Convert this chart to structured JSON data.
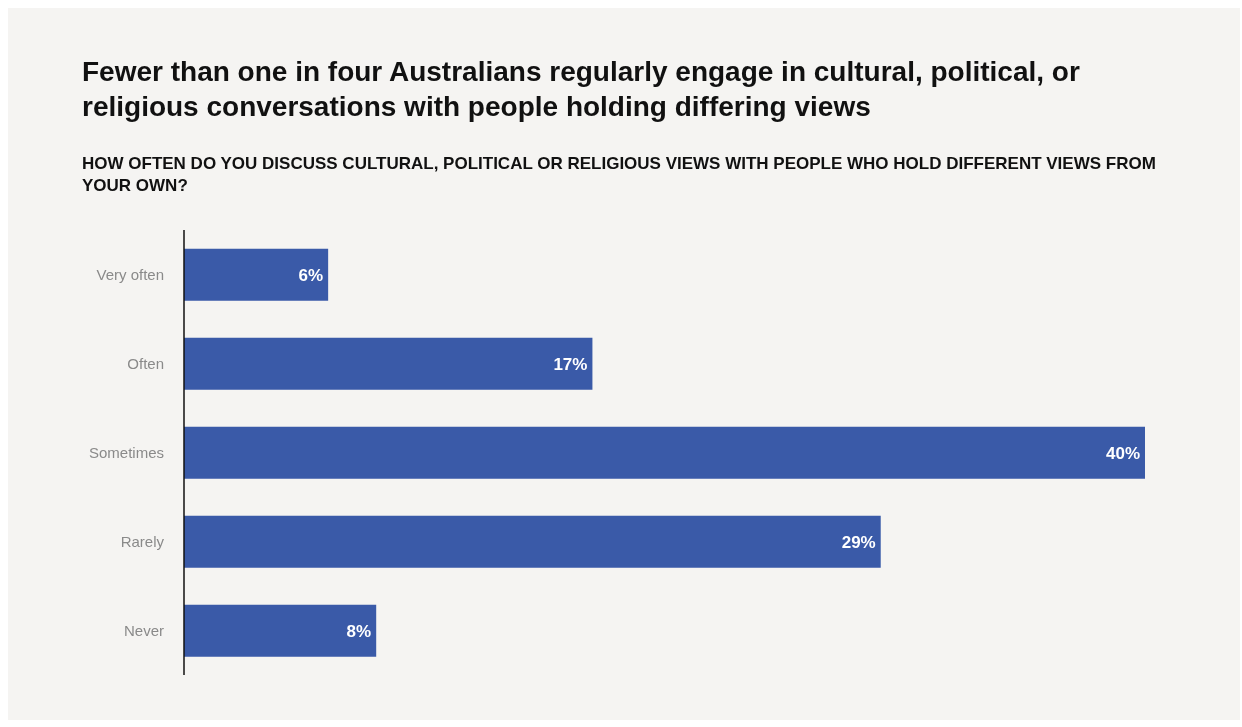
{
  "chart_data": {
    "type": "bar",
    "orientation": "horizontal",
    "title": "Fewer than one in four Australians regularly engage in cultural, political, or religious conversations with people holding differing views",
    "subtitle": "HOW OFTEN DO YOU DISCUSS CULTURAL, POLITICAL OR RELIGIOUS VIEWS WITH PEOPLE WHO HOLD DIFFERENT VIEWS FROM YOUR OWN?",
    "categories": [
      "Very often",
      "Often",
      "Sometimes",
      "Rarely",
      "Never"
    ],
    "values": [
      6,
      17,
      40,
      29,
      8
    ],
    "value_labels": [
      "6%",
      "17%",
      "40%",
      "29%",
      "8%"
    ],
    "color": "#3a5aa8",
    "grid": false,
    "legend": false
  }
}
